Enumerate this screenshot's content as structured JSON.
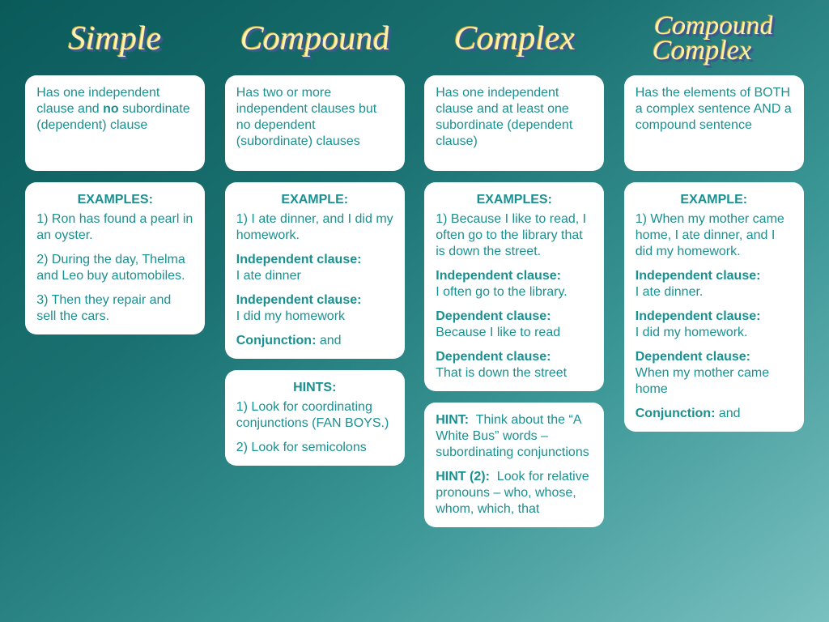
{
  "colors": {
    "card_bg": "#ffffff",
    "text": "#1a9090",
    "title_fill": "#fff2b0",
    "title_shadow": "#3a5a8c"
  },
  "columns": [
    {
      "title": "Simple",
      "definition_html": "Has one independent clause and <b>no</b> subordinate (dependent) clause",
      "example_heading": "EXAMPLES:",
      "examples_html": "<p>1) Ron has found a pearl in an oyster.</p><p>2) During the day, Thelma and Leo buy automobiles.</p><p>3) Then they repair and sell the cars.</p>",
      "hints_heading": null,
      "hints_html": null,
      "extra_hint_html": null
    },
    {
      "title": "Compound",
      "definition_html": "Has two or more independent clauses but no dependent (subordinate) clauses",
      "example_heading": "EXAMPLE:",
      "examples_html": "<p>1) I ate dinner, and I did my homework.</p><p><b>Independent clause:</b><br>I ate dinner</p><p><b>Independent clause:</b><br>I did my homework</p><p><b>Conjunction:</b> and</p>",
      "hints_heading": "HINTS:",
      "hints_html": "<p>1) Look for coordinating conjunctions (FAN BOYS.)</p><p>2) Look for semicolons</p>",
      "extra_hint_html": null
    },
    {
      "title": "Complex",
      "definition_html": "Has one independent clause and at least one subordinate (dependent clause)",
      "example_heading": "EXAMPLES:",
      "examples_html": "<p>1) Because I like to read, I often go to the library that is down the street.</p><p><b>Independent clause:</b><br>I often go to the library.</p><p><b>Dependent clause:</b><br>Because I like to read</p><p><b>Dependent clause:</b><br>That is down the street</p>",
      "hints_heading": null,
      "hints_html": null,
      "extra_hint_html": "<p><b>HINT:</b>&nbsp; Think about the &ldquo;A White Bus&rdquo; words &ndash; subordinating conjunctions</p><p><b>HINT (2):</b>&nbsp; Look for relative pronouns &ndash; who, whose, whom, which, that</p>"
    },
    {
      "title": "Compound\nComplex",
      "definition_html": "Has the elements of BOTH a complex sentence AND a compound sentence",
      "example_heading": "EXAMPLE:",
      "examples_html": "<p>1) When my mother came home, I ate dinner, and I did my homework.</p><p><b>Independent clause:</b><br>I ate dinner.</p><p><b>Independent clause:</b><br>I did my homework.</p><p><b>Dependent clause:</b><br>When my mother came home</p><p><b>Conjunction:</b> and</p>",
      "hints_heading": null,
      "hints_html": null,
      "extra_hint_html": null
    }
  ]
}
